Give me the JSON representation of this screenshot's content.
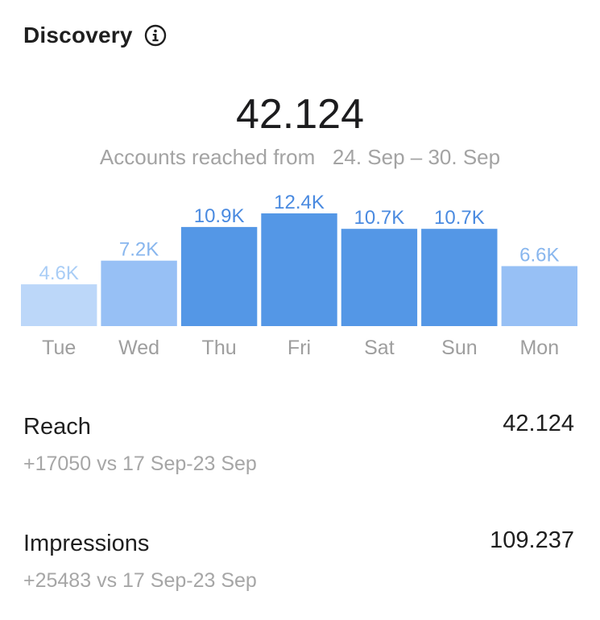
{
  "header": {
    "title": "Discovery",
    "info_icon": "info-icon"
  },
  "summary": {
    "total": "42.124",
    "subtitle_prefix": "Accounts reached from",
    "date_range": "24. Sep – 30. Sep"
  },
  "chart_data": {
    "type": "bar",
    "categories": [
      "Tue",
      "Wed",
      "Thu",
      "Fri",
      "Sat",
      "Sun",
      "Mon"
    ],
    "values": [
      4.6,
      7.2,
      10.9,
      12.4,
      10.7,
      10.7,
      6.6
    ],
    "value_labels": [
      "4.6K",
      "7.2K",
      "10.9K",
      "12.4K",
      "10.7K",
      "10.7K",
      "6.6K"
    ],
    "unit": "K",
    "title": "",
    "xlabel": "",
    "ylabel": "",
    "ylim": [
      0,
      12.4
    ],
    "grid": false,
    "colors": {
      "light": "#bcd7f9",
      "medium": "#97c0f5",
      "dark": "#5497e6",
      "label_light": "#a9cdf6",
      "label_medium": "#88b6ee",
      "label_dark": "#4a8ae0",
      "axis_label": "#9e9e9e"
    },
    "bar_shades": [
      "light",
      "medium",
      "dark",
      "dark",
      "dark",
      "dark",
      "medium"
    ]
  },
  "metrics": [
    {
      "label": "Reach",
      "value": "42.124",
      "delta": "+17050 vs 17 Sep-23 Sep"
    },
    {
      "label": "Impressions",
      "value": "109.237",
      "delta": "+25483 vs 17 Sep-23 Sep"
    }
  ]
}
